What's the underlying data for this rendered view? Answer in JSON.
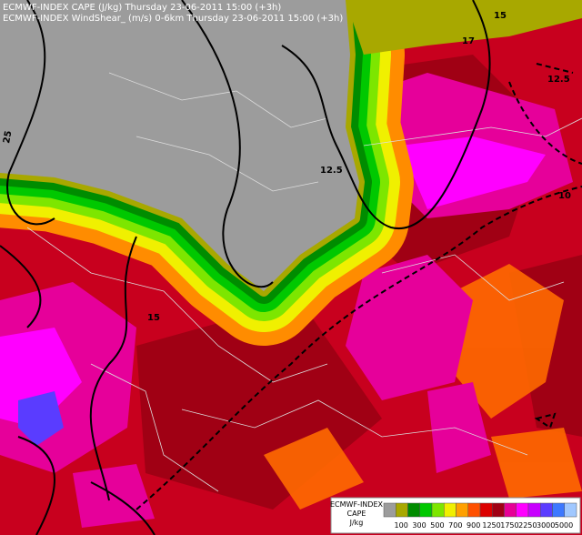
{
  "header": {
    "line1": "ECMWF-INDEX CAPE (J/kg) Thursday 23-06-2011 15:00 (+3h)",
    "line2": "ECMWF-INDEX WindShear_ (m/s) 0-6km Thursday 23-06-2011 15:00 (+3h)"
  },
  "contour_labels": [
    "25",
    "12.5",
    "17",
    "15",
    "12.5",
    "10",
    "15"
  ],
  "legend": {
    "title1": "ECMWF-INDEX",
    "title2": "CAPE",
    "unit": "J/kg",
    "colors": [
      "#9c9c9c",
      "#a8a800",
      "#008c00",
      "#00c800",
      "#7de600",
      "#f0f000",
      "#ffa000",
      "#ff5000",
      "#dc0000",
      "#a00014",
      "#e60096",
      "#ff00ff",
      "#c800ff",
      "#5a3cff",
      "#3c78ff",
      "#a0c8ff"
    ],
    "ticks": [
      "100",
      "300",
      "500",
      "700",
      "900",
      "1250",
      "1750",
      "2250",
      "3000",
      "5000"
    ]
  }
}
